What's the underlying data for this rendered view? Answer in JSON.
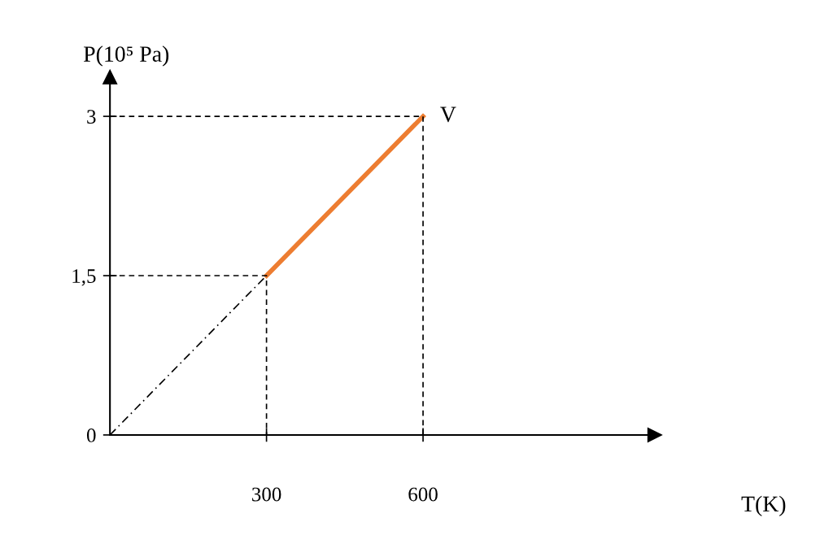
{
  "chart_data": {
    "type": "line",
    "xlabel": "T(K)",
    "ylabel": "P(10⁵ Pa)",
    "xlim": [
      0,
      1044
    ],
    "ylim": [
      0,
      3.37
    ],
    "xticks": [
      300,
      600
    ],
    "yticks": [
      {
        "value": 0,
        "label": "0"
      },
      {
        "value": 1.5,
        "label": "1,5"
      },
      3
    ],
    "grid": false,
    "legend": false,
    "series": [
      {
        "color": "#ed7d31",
        "line_style": "solid",
        "x": [
          300,
          600
        ],
        "values": [
          1.5,
          3
        ]
      },
      {
        "color": "#000000",
        "line_style": "dashdot",
        "x": [
          0,
          300
        ],
        "values": [
          0,
          1.5
        ]
      },
      {
        "color": "#000000",
        "line_style": "dashed",
        "x": [
          0,
          600,
          600
        ],
        "values": [
          3,
          3,
          0
        ]
      },
      {
        "color": "#000000",
        "line_style": "dashed",
        "x": [
          0,
          300,
          300
        ],
        "values": [
          1.5,
          1.5,
          0
        ]
      }
    ],
    "annotations": [
      {
        "text": "V",
        "x": 600,
        "y": 3
      }
    ]
  }
}
